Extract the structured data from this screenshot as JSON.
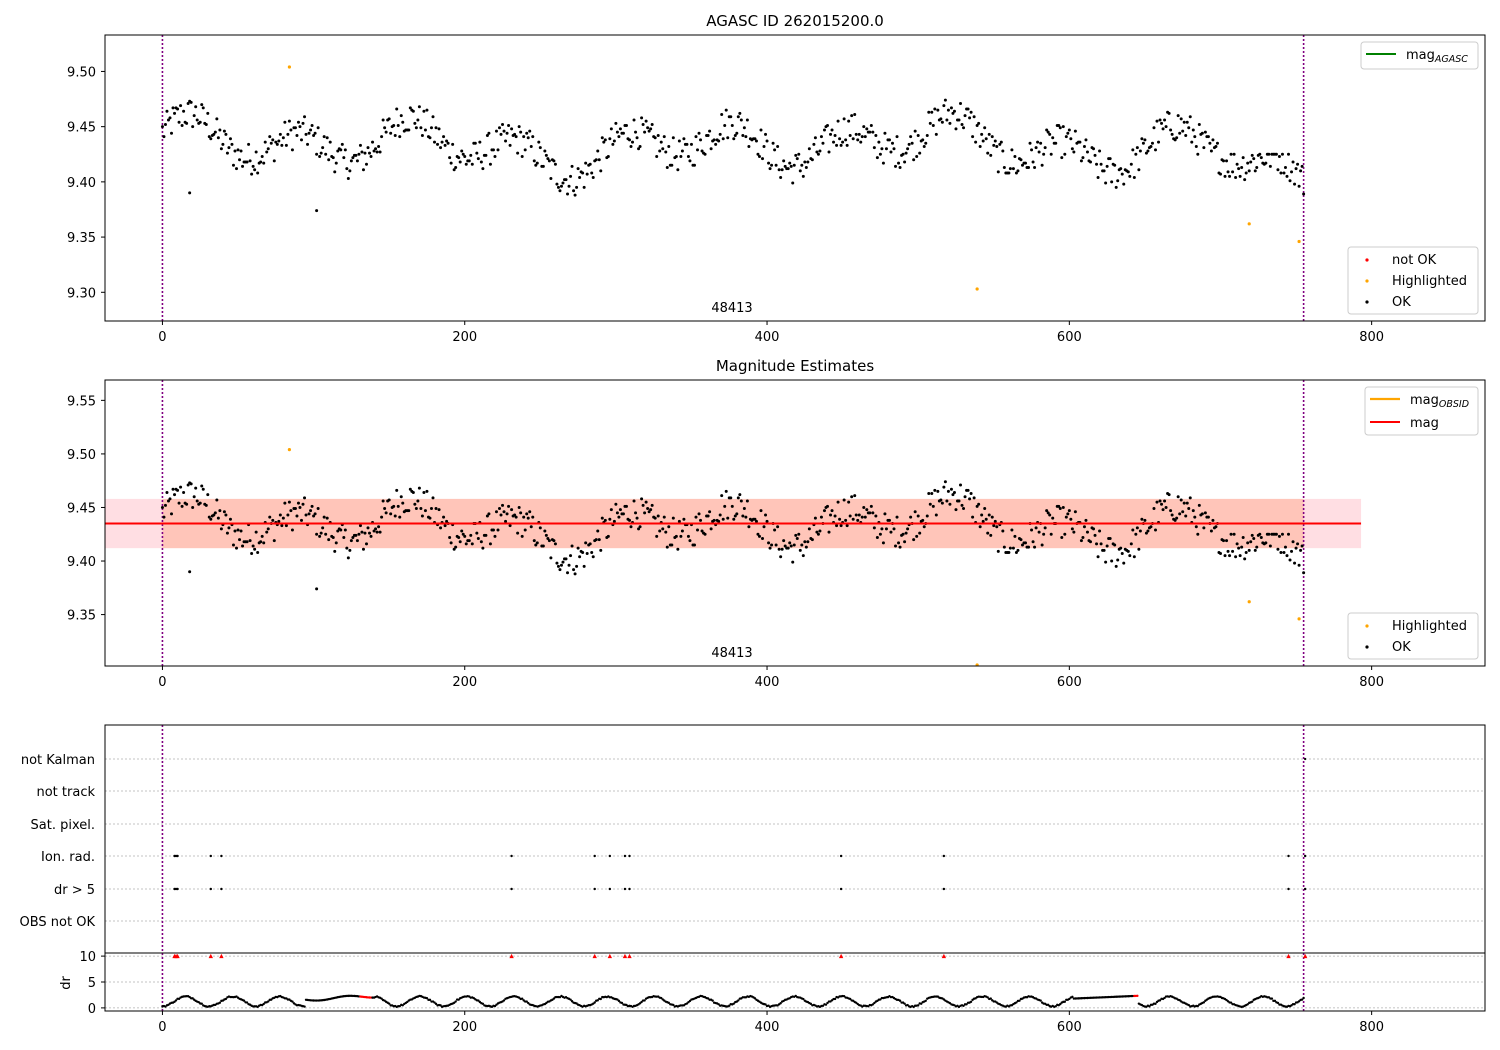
{
  "colors": {
    "ok": "#000000",
    "highlighted": "#ffa500",
    "not_ok": "#ff0000",
    "mag_agasc": "#008000",
    "mag_obsid": "#ffa500",
    "mag": "#ff0000",
    "band_outer": "#ffb6c1",
    "band_inner": "#ffa07a",
    "obs_boundary": "#800080",
    "grid": "#b0b0b0"
  },
  "chart_data": [
    {
      "id": "agasc",
      "type": "scatter",
      "title": "AGASC ID 262015200.0",
      "xlabel": "",
      "ylabel": "",
      "xlim": [
        -38,
        875
      ],
      "ylim": [
        9.274,
        9.533
      ],
      "xticks": [
        0,
        200,
        400,
        600,
        800
      ],
      "yticks": [
        9.3,
        9.35,
        9.4,
        9.45,
        9.5
      ],
      "ytick_labels": [
        "9.30",
        "9.35",
        "9.40",
        "9.45",
        "9.50"
      ],
      "obs_boundaries": [
        0,
        755
      ],
      "obsid_label": "48413",
      "obsid_label_x": 378,
      "reference_line": {
        "name": "mag_AGASC",
        "y": 9.46,
        "visible": false
      },
      "legend_lines": [
        {
          "name": "mag",
          "subscript": "AGASC",
          "color_key": "mag_agasc"
        }
      ],
      "legend_points": [
        {
          "name": "not OK",
          "color_key": "not_ok"
        },
        {
          "name": "Highlighted",
          "color_key": "highlighted"
        },
        {
          "name": "OK",
          "color_key": "ok"
        }
      ],
      "highlighted_points": [
        [
          84,
          9.504
        ],
        [
          719,
          9.362
        ],
        [
          752,
          9.346
        ],
        [
          539,
          9.303
        ]
      ],
      "outliers": [
        [
          102,
          9.374
        ],
        [
          18,
          9.39
        ]
      ]
    },
    {
      "id": "estimates",
      "type": "scatter",
      "title": "Magnitude Estimates",
      "xlabel": "",
      "ylabel": "",
      "xlim": [
        -38,
        875
      ],
      "ylim": [
        9.302,
        9.569
      ],
      "xticks": [
        0,
        200,
        400,
        600,
        800
      ],
      "yticks": [
        9.35,
        9.4,
        9.45,
        9.5,
        9.55
      ],
      "ytick_labels": [
        "9.35",
        "9.40",
        "9.45",
        "9.50",
        "9.55"
      ],
      "obs_boundaries": [
        0,
        755
      ],
      "obsid_label": "48413",
      "obsid_label_x": 378,
      "mag_line": {
        "y": 9.435,
        "x_range": [
          0,
          793
        ]
      },
      "mag_band": {
        "low": 9.412,
        "high": 9.458,
        "x_range": [
          -38,
          793
        ]
      },
      "obsid_band": {
        "low": 9.412,
        "high": 9.458,
        "x_range": [
          0,
          755
        ]
      },
      "legend_lines": [
        {
          "name": "mag",
          "subscript": "OBSID",
          "color_key": "mag_obsid"
        },
        {
          "name": "mag",
          "subscript": "",
          "color_key": "mag"
        }
      ],
      "legend_points": [
        {
          "name": "Highlighted",
          "color_key": "highlighted"
        },
        {
          "name": "OK",
          "color_key": "ok"
        }
      ],
      "highlighted_points": [
        [
          84,
          9.504
        ],
        [
          719,
          9.362
        ],
        [
          752,
          9.346
        ],
        [
          539,
          9.303
        ]
      ],
      "outliers": [
        [
          102,
          9.374
        ],
        [
          18,
          9.39
        ]
      ]
    },
    {
      "id": "flags",
      "type": "scatter",
      "title": "",
      "xlim": [
        -38,
        875
      ],
      "xticks": [
        0,
        200,
        400,
        600,
        800
      ],
      "obs_boundaries": [
        0,
        755
      ],
      "categories": [
        "not Kalman",
        "not track",
        "Sat. pixel.",
        "Ion. rad.",
        "dr > 5",
        "OBS not OK"
      ],
      "flagged_x": [
        8,
        9,
        10,
        32,
        39,
        231,
        286,
        296,
        306,
        309,
        449,
        517,
        745,
        756
      ]
    },
    {
      "id": "dr",
      "type": "scatter",
      "title": "",
      "ylabel": "dr",
      "xlim": [
        -38,
        875
      ],
      "ylim": [
        -0.6,
        10.6
      ],
      "xticks": [
        0,
        200,
        400,
        600,
        800
      ],
      "yticks": [
        0,
        5,
        10
      ],
      "ytick_labels": [
        "0",
        "5",
        "10"
      ],
      "obs_boundaries": [
        0,
        755
      ],
      "clipped_value": 10,
      "clipped_x": [
        8,
        9,
        10,
        32,
        39,
        231,
        286,
        296,
        306,
        309,
        449,
        517,
        745,
        756
      ],
      "red_segments": [
        [
          131,
          138
        ],
        [
          643,
          645
        ]
      ]
    }
  ]
}
